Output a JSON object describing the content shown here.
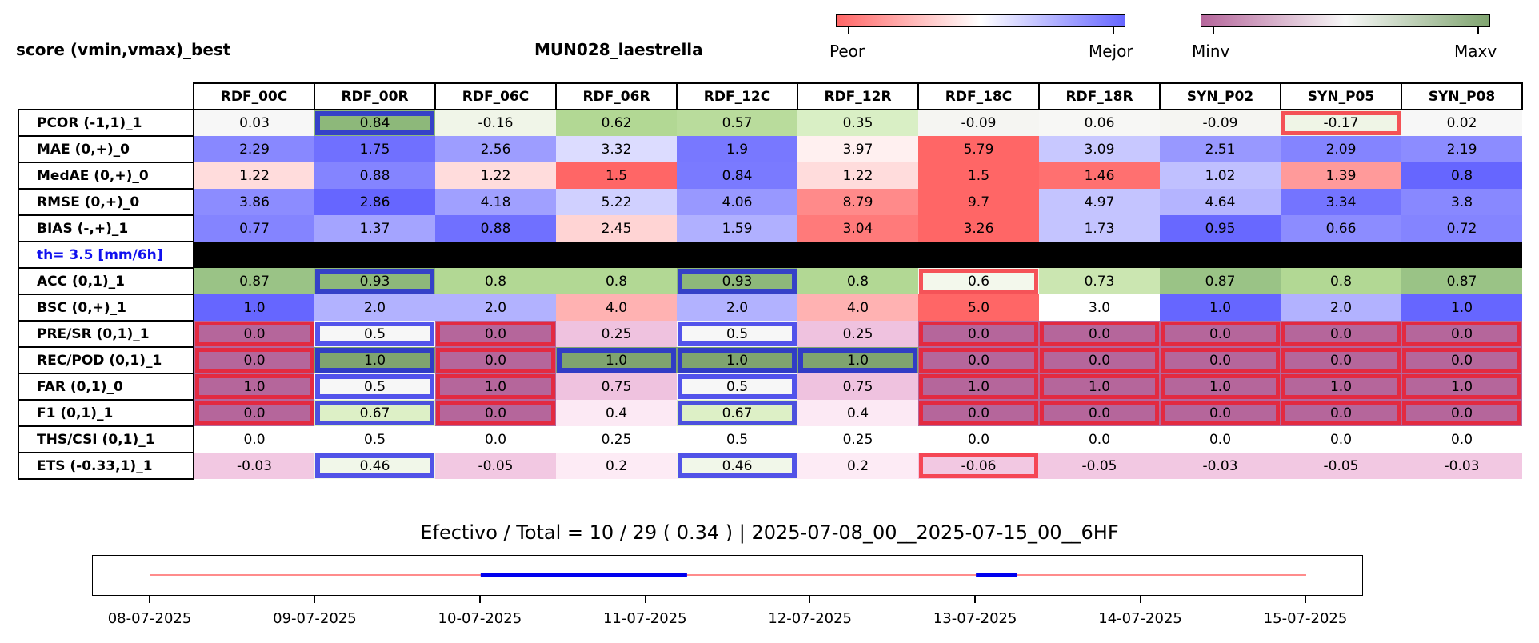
{
  "header": {
    "left_title": "score (vmin,vmax)_best",
    "station": "MUN028_laestrella"
  },
  "colorbars": [
    {
      "name": "worse-better",
      "low_label": "Peor",
      "high_label": "Mejor",
      "colors": [
        "#ff6666",
        "#ffffff",
        "#6666ff"
      ]
    },
    {
      "name": "min-max",
      "low_label": "Minv",
      "high_label": "Maxv",
      "colors": [
        "#b5669b",
        "#f7f7f7",
        "#7fa46f"
      ]
    }
  ],
  "chart_data": {
    "type": "table",
    "columns": [
      "RDF_00C",
      "RDF_00R",
      "RDF_06C",
      "RDF_06R",
      "RDF_12C",
      "RDF_12R",
      "RDF_18C",
      "RDF_18R",
      "SYN_P02",
      "SYN_P05",
      "SYN_P08"
    ],
    "rows": [
      {
        "label": "PCOR (-1,1)_1",
        "values": [
          "0.03",
          "0.84",
          "-0.16",
          "0.62",
          "0.57",
          "0.35",
          "-0.09",
          "0.06",
          "-0.09",
          "-0.17",
          "0.02"
        ],
        "colors": [
          "#f7f7f7",
          "#8db87a",
          "#f0f5e8",
          "#b2d894",
          "#b9dc9c",
          "#d9efc5",
          "#f5f5f2",
          "#f7f7f5",
          "#f5f5f2",
          "#eff5e6",
          "#f7f7f7"
        ],
        "best": [
          1
        ],
        "worst": [
          9
        ]
      },
      {
        "label": "MAE (0,+)_0",
        "values": [
          "2.29",
          "1.75",
          "2.56",
          "3.32",
          "1.9",
          "3.97",
          "5.79",
          "3.09",
          "2.51",
          "2.09",
          "2.19"
        ],
        "colors": [
          "#8888ff",
          "#7070ff",
          "#9d9dff",
          "#dcdcff",
          "#7878ff",
          "#fff0f0",
          "#ff6666",
          "#c8c8ff",
          "#9898ff",
          "#8484ff",
          "#8c8cff"
        ],
        "best": [],
        "worst": []
      },
      {
        "label": "MedAE (0,+)_0",
        "values": [
          "1.22",
          "0.88",
          "1.22",
          "1.5",
          "0.84",
          "1.22",
          "1.5",
          "1.46",
          "1.02",
          "1.39",
          "0.8"
        ],
        "colors": [
          "#ffdcdc",
          "#8484ff",
          "#ffdcdc",
          "#ff6666",
          "#7a7aff",
          "#ffdcdc",
          "#ff6666",
          "#ff7070",
          "#c0c0ff",
          "#ff9a9a",
          "#6666ff"
        ],
        "best": [],
        "worst": []
      },
      {
        "label": "RMSE (0,+)_0",
        "values": [
          "3.86",
          "2.86",
          "4.18",
          "5.22",
          "4.06",
          "8.79",
          "9.7",
          "4.97",
          "4.64",
          "3.34",
          "3.8"
        ],
        "colors": [
          "#8c8cff",
          "#6666ff",
          "#a0a0ff",
          "#d0d0ff",
          "#9898ff",
          "#ff8a8a",
          "#ff6666",
          "#c4c4ff",
          "#b4b4ff",
          "#7474ff",
          "#8888ff"
        ],
        "best": [],
        "worst": []
      },
      {
        "label": "BIAS (-,+)_1",
        "values": [
          "0.77",
          "1.37",
          "0.88",
          "2.45",
          "1.59",
          "3.04",
          "3.26",
          "1.73",
          "0.95",
          "0.66",
          "0.72"
        ],
        "colors": [
          "#8484ff",
          "#a4a4ff",
          "#7070ff",
          "#ffd4d4",
          "#b0b0ff",
          "#ff7a7a",
          "#ff6666",
          "#c4c4ff",
          "#6868ff",
          "#8c8cff",
          "#8484ff"
        ],
        "best": [],
        "worst": []
      },
      {
        "label": "th= 3.5 [mm/6h]",
        "threshold": true
      },
      {
        "label": "ACC (0,1)_1",
        "values": [
          "0.87",
          "0.93",
          "0.8",
          "0.8",
          "0.93",
          "0.8",
          "0.6",
          "0.73",
          "0.87",
          "0.8",
          "0.87"
        ],
        "colors": [
          "#9ac386",
          "#8db87a",
          "#b2d894",
          "#b2d894",
          "#8db87a",
          "#b2d894",
          "#f3f8ec",
          "#cbe6b1",
          "#9ac386",
          "#b2d894",
          "#9ac386"
        ],
        "best": [
          1,
          4
        ],
        "worst": [
          6
        ]
      },
      {
        "label": "BSC (0,+)_1",
        "values": [
          "1.0",
          "2.0",
          "2.0",
          "4.0",
          "2.0",
          "4.0",
          "5.0",
          "3.0",
          "1.0",
          "2.0",
          "1.0"
        ],
        "colors": [
          "#6666ff",
          "#b2b2ff",
          "#b2b2ff",
          "#ffb2b2",
          "#b2b2ff",
          "#ffb2b2",
          "#ff6666",
          "#ffffff",
          "#6666ff",
          "#b2b2ff",
          "#6666ff"
        ],
        "best": [],
        "worst": []
      },
      {
        "label": "PRE/SR (0,1)_1",
        "values": [
          "0.0",
          "0.5",
          "0.0",
          "0.25",
          "0.5",
          "0.25",
          "0.0",
          "0.0",
          "0.0",
          "0.0",
          "0.0"
        ],
        "colors": [
          "#b5669b",
          "#f7f7f7",
          "#b5669b",
          "#efc2df",
          "#f7f7f7",
          "#efc2df",
          "#b5669b",
          "#b5669b",
          "#b5669b",
          "#b5669b",
          "#b5669b"
        ],
        "best": [
          1,
          4
        ],
        "worst": [
          0,
          2,
          6,
          7,
          8,
          9,
          10
        ]
      },
      {
        "label": "REC/POD (0,1)_1",
        "values": [
          "0.0",
          "1.0",
          "0.0",
          "1.0",
          "1.0",
          "1.0",
          "0.0",
          "0.0",
          "0.0",
          "0.0",
          "0.0"
        ],
        "colors": [
          "#b5669b",
          "#7fa46f",
          "#b5669b",
          "#7fa46f",
          "#7fa46f",
          "#7fa46f",
          "#b5669b",
          "#b5669b",
          "#b5669b",
          "#b5669b",
          "#b5669b"
        ],
        "best": [
          1,
          3,
          4,
          5
        ],
        "worst": [
          0,
          2,
          6,
          7,
          8,
          9,
          10
        ]
      },
      {
        "label": "FAR (0,1)_0",
        "values": [
          "1.0",
          "0.5",
          "1.0",
          "0.75",
          "0.5",
          "0.75",
          "1.0",
          "1.0",
          "1.0",
          "1.0",
          "1.0"
        ],
        "colors": [
          "#b5669b",
          "#f7f7f7",
          "#b5669b",
          "#efc2df",
          "#f7f7f7",
          "#efc2df",
          "#b5669b",
          "#b5669b",
          "#b5669b",
          "#b5669b",
          "#b5669b"
        ],
        "best": [
          1,
          4
        ],
        "worst": [
          0,
          2,
          6,
          7,
          8,
          9,
          10
        ]
      },
      {
        "label": "F1 (0,1)_1",
        "values": [
          "0.0",
          "0.67",
          "0.0",
          "0.4",
          "0.67",
          "0.4",
          "0.0",
          "0.0",
          "0.0",
          "0.0",
          "0.0"
        ],
        "colors": [
          "#b5669b",
          "#ddf0c6",
          "#b5669b",
          "#fce9f4",
          "#ddf0c6",
          "#fce9f4",
          "#b5669b",
          "#b5669b",
          "#b5669b",
          "#b5669b",
          "#b5669b"
        ],
        "best": [
          1,
          4
        ],
        "worst": [
          0,
          2,
          6,
          7,
          8,
          9,
          10
        ]
      },
      {
        "label": "THS/CSI (0,1)_1",
        "values": [
          "0.0",
          "0.5",
          "0.0",
          "0.25",
          "0.5",
          "0.25",
          "0.0",
          "0.0",
          "0.0",
          "0.0",
          "0.0"
        ],
        "colors": [
          "#ffffff",
          "#ffffff",
          "#ffffff",
          "#ffffff",
          "#ffffff",
          "#ffffff",
          "#ffffff",
          "#ffffff",
          "#ffffff",
          "#ffffff",
          "#ffffff"
        ],
        "best": [],
        "worst": []
      },
      {
        "label": "ETS (-0.33,1)_1",
        "values": [
          "-0.03",
          "0.46",
          "-0.05",
          "0.2",
          "0.46",
          "0.2",
          "-0.06",
          "-0.05",
          "-0.03",
          "-0.05",
          "-0.03"
        ],
        "colors": [
          "#f2c8e2",
          "#f1f7e9",
          "#f2c8e2",
          "#fdebf5",
          "#f1f7e9",
          "#fdebf5",
          "#f2c8e2",
          "#f2c8e2",
          "#f2c8e2",
          "#f2c8e2",
          "#f2c8e2"
        ],
        "best": [
          1,
          4
        ],
        "worst": [
          6
        ]
      }
    ],
    "summary": "Efectivo / Total  =  10 / 29 ( 0.34 ) | 2025-07-08_00__2025-07-15_00__6HF",
    "timeline": {
      "ticks": [
        "08-07-2025",
        "09-07-2025",
        "10-07-2025",
        "11-07-2025",
        "12-07-2025",
        "13-07-2025",
        "14-07-2025",
        "15-07-2025"
      ],
      "range_days": [
        0,
        7
      ],
      "base_color": "#ff6666",
      "active_color": "#0000ee",
      "active_segments": [
        [
          2.0,
          3.25
        ],
        [
          5.0,
          5.25
        ]
      ]
    }
  }
}
